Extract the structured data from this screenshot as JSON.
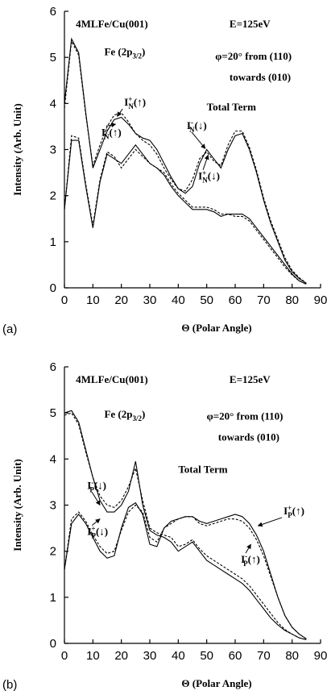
{
  "chart_data": [
    {
      "type": "line",
      "panel_label": "(a)",
      "y_label": "Intensity (Arb. Unit)",
      "x_label": "Θ (Polar Angle)",
      "xlim": [
        0,
        90
      ],
      "xticks": [
        0,
        10,
        20,
        30,
        40,
        50,
        60,
        70,
        80,
        90
      ],
      "ylim": [
        0,
        6
      ],
      "yticks": [
        0,
        1,
        2,
        3,
        4,
        5,
        6
      ],
      "annotations": [
        {
          "segments": [
            {
              "text": "4MLFe/Cu(001)"
            }
          ]
        },
        {
          "segments": [
            {
              "text": "E=125eV"
            }
          ]
        },
        {
          "segments": [
            {
              "text": "Fe (2p"
            },
            {
              "text": "3/2",
              "sub": true
            },
            {
              "text": ")"
            }
          ]
        },
        {
          "segments": [
            {
              "text": "φ=20° from (110)"
            }
          ]
        },
        {
          "segments": [
            {
              "text": "towards (010)"
            }
          ]
        },
        {
          "segments": [
            {
              "text": "Total Term"
            }
          ]
        },
        {
          "segments": [
            {
              "text": "I"
            },
            {
              "text": "+",
              "sup": true
            },
            {
              "text": "N",
              "sub": true
            },
            {
              "text": "(↑)"
            }
          ]
        },
        {
          "segments": [
            {
              "text": "I"
            },
            {
              "text": "-",
              "sup": true
            },
            {
              "text": "N",
              "sub": true
            },
            {
              "text": "(↑)"
            }
          ]
        },
        {
          "segments": [
            {
              "text": "I"
            },
            {
              "text": "-",
              "sup": true
            },
            {
              "text": "N",
              "sub": true
            },
            {
              "text": "(↓)"
            }
          ]
        },
        {
          "segments": [
            {
              "text": "I"
            },
            {
              "text": "+",
              "sup": true
            },
            {
              "text": "N",
              "sub": true
            },
            {
              "text": "(↓)"
            }
          ]
        }
      ],
      "x": [
        0,
        2.5,
        5,
        7.5,
        10,
        12.5,
        15,
        17.5,
        20,
        22.5,
        25,
        27.5,
        30,
        32.5,
        35,
        37.5,
        40,
        42.5,
        45,
        47.5,
        50,
        52.5,
        55,
        57.5,
        60,
        62.5,
        65,
        67.5,
        70,
        72.5,
        75,
        77.5,
        80,
        82.5,
        85
      ],
      "series": [
        {
          "color": "#000000",
          "dashed": false,
          "values": [
            4.0,
            5.4,
            5.1,
            3.8,
            2.6,
            3.0,
            3.4,
            3.65,
            3.7,
            3.55,
            3.35,
            3.25,
            3.2,
            3.0,
            2.7,
            2.4,
            2.15,
            2.05,
            2.2,
            2.7,
            3.0,
            2.8,
            2.6,
            3.0,
            3.3,
            3.35,
            3.0,
            2.5,
            1.9,
            1.4,
            1.0,
            0.6,
            0.35,
            0.2,
            0.1
          ]
        },
        {
          "color": "#000000",
          "dashed": true,
          "values": [
            3.9,
            5.35,
            5.05,
            3.75,
            2.65,
            3.1,
            3.5,
            3.75,
            3.8,
            3.6,
            3.35,
            3.2,
            3.1,
            2.9,
            2.6,
            2.35,
            2.15,
            2.1,
            2.35,
            2.8,
            2.95,
            2.75,
            2.65,
            3.1,
            3.4,
            3.4,
            3.05,
            2.55,
            1.95,
            1.45,
            1.05,
            0.65,
            0.38,
            0.22,
            0.1
          ]
        },
        {
          "color": "#000000",
          "dashed": false,
          "values": [
            1.7,
            3.2,
            3.2,
            2.2,
            1.3,
            2.3,
            2.9,
            2.8,
            2.7,
            2.9,
            3.1,
            2.9,
            2.7,
            2.6,
            2.45,
            2.2,
            2.0,
            1.85,
            1.7,
            1.7,
            1.7,
            1.65,
            1.55,
            1.6,
            1.6,
            1.6,
            1.5,
            1.3,
            1.1,
            0.9,
            0.7,
            0.5,
            0.3,
            0.15,
            0.08
          ]
        },
        {
          "color": "#000000",
          "dashed": true,
          "values": [
            1.7,
            3.3,
            3.25,
            2.25,
            1.35,
            2.35,
            2.95,
            2.85,
            2.6,
            2.8,
            3.0,
            2.85,
            2.7,
            2.6,
            2.5,
            2.25,
            2.05,
            1.9,
            1.75,
            1.75,
            1.75,
            1.7,
            1.6,
            1.6,
            1.55,
            1.55,
            1.45,
            1.25,
            1.05,
            0.85,
            0.65,
            0.45,
            0.28,
            0.15,
            0.08
          ]
        }
      ]
    },
    {
      "type": "line",
      "panel_label": "(b)",
      "y_label": "Intensity (Arb. Unit)",
      "x_label": "Θ (Polar Angle)",
      "xlim": [
        0,
        90
      ],
      "xticks": [
        0,
        10,
        20,
        30,
        40,
        50,
        60,
        70,
        80,
        90
      ],
      "ylim": [
        0,
        6
      ],
      "yticks": [
        0,
        1,
        2,
        3,
        4,
        5,
        6
      ],
      "annotations": [
        {
          "segments": [
            {
              "text": "4MLFe/Cu(001)"
            }
          ]
        },
        {
          "segments": [
            {
              "text": "E=125eV"
            }
          ]
        },
        {
          "segments": [
            {
              "text": "Fe (2p"
            },
            {
              "text": "3/2",
              "sub": true
            },
            {
              "text": ")"
            }
          ]
        },
        {
          "segments": [
            {
              "text": "φ=20° from (110)"
            }
          ]
        },
        {
          "segments": [
            {
              "text": "towards (010)"
            }
          ]
        },
        {
          "segments": [
            {
              "text": "Total Term"
            }
          ]
        },
        {
          "segments": [
            {
              "text": "I"
            },
            {
              "text": "-",
              "sup": true
            },
            {
              "text": "P",
              "sub": true
            },
            {
              "text": "(↓)"
            }
          ]
        },
        {
          "segments": [
            {
              "text": "I"
            },
            {
              "text": "+",
              "sup": true
            },
            {
              "text": "P",
              "sub": true
            },
            {
              "text": "(↓)"
            }
          ]
        },
        {
          "segments": [
            {
              "text": "I"
            },
            {
              "text": "+",
              "sup": true
            },
            {
              "text": "P",
              "sub": true
            },
            {
              "text": "(↑)"
            }
          ]
        },
        {
          "segments": [
            {
              "text": "I"
            },
            {
              "text": "-",
              "sup": true
            },
            {
              "text": "P",
              "sub": true
            },
            {
              "text": "(↑)"
            }
          ]
        }
      ],
      "x": [
        0,
        2.5,
        5,
        7.5,
        10,
        12.5,
        15,
        17.5,
        20,
        22.5,
        25,
        27.5,
        30,
        32.5,
        35,
        37.5,
        40,
        42.5,
        45,
        47.5,
        50,
        52.5,
        55,
        57.5,
        60,
        62.5,
        65,
        67.5,
        70,
        72.5,
        75,
        77.5,
        80,
        82.5,
        85
      ],
      "series": [
        {
          "color": "#000000",
          "dashed": false,
          "values": [
            5.0,
            5.05,
            4.8,
            4.2,
            3.6,
            3.1,
            2.85,
            2.85,
            3.0,
            3.3,
            3.95,
            3.0,
            2.45,
            2.35,
            2.3,
            2.2,
            2.0,
            2.1,
            2.2,
            2.0,
            1.8,
            1.7,
            1.6,
            1.5,
            1.4,
            1.3,
            1.15,
            0.95,
            0.75,
            0.55,
            0.4,
            0.28,
            0.2,
            0.12,
            0.08
          ]
        },
        {
          "color": "#000000",
          "dashed": true,
          "values": [
            4.95,
            5.0,
            4.75,
            4.15,
            3.6,
            3.2,
            3.0,
            2.95,
            3.1,
            3.4,
            3.8,
            3.1,
            2.5,
            2.4,
            2.35,
            2.3,
            2.1,
            2.15,
            2.25,
            2.05,
            1.9,
            1.8,
            1.7,
            1.6,
            1.5,
            1.4,
            1.25,
            1.05,
            0.85,
            0.65,
            0.45,
            0.3,
            0.2,
            0.12,
            0.08
          ]
        },
        {
          "color": "#000000",
          "dashed": false,
          "values": [
            1.6,
            2.6,
            2.8,
            2.6,
            2.3,
            2.0,
            1.85,
            1.9,
            2.5,
            2.95,
            3.05,
            2.8,
            2.15,
            2.1,
            2.5,
            2.65,
            2.7,
            2.75,
            2.75,
            2.65,
            2.6,
            2.65,
            2.7,
            2.75,
            2.8,
            2.75,
            2.6,
            2.35,
            2.0,
            1.5,
            1.0,
            0.6,
            0.35,
            0.2,
            0.1
          ]
        },
        {
          "color": "#000000",
          "dashed": true,
          "values": [
            1.6,
            2.7,
            2.85,
            2.65,
            2.35,
            2.1,
            1.95,
            2.0,
            2.45,
            2.85,
            3.0,
            2.85,
            2.3,
            2.2,
            2.5,
            2.6,
            2.7,
            2.75,
            2.75,
            2.6,
            2.55,
            2.6,
            2.65,
            2.7,
            2.7,
            2.65,
            2.5,
            2.25,
            1.9,
            1.45,
            1.0,
            0.6,
            0.35,
            0.2,
            0.1
          ]
        }
      ]
    }
  ]
}
